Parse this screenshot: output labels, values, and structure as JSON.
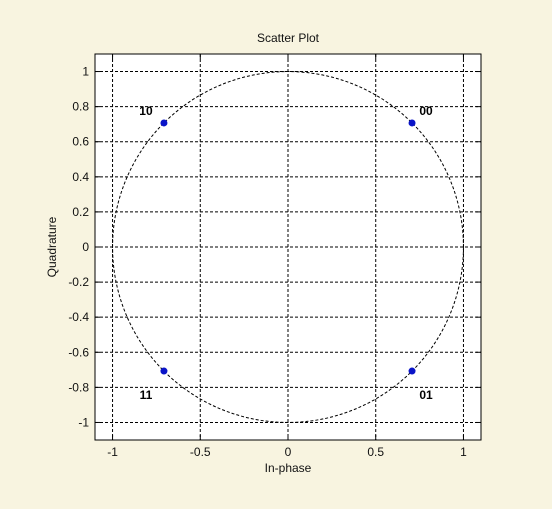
{
  "chart_data": {
    "type": "scatter",
    "title": "Scatter Plot",
    "xlabel": "In-phase",
    "ylabel": "Quadrature",
    "xlim": [
      -1.1,
      1.1
    ],
    "ylim": [
      -1.1,
      1.1
    ],
    "xticks": [
      -1,
      -0.5,
      0,
      0.5,
      1
    ],
    "xtick_labels": [
      "-1",
      "-0.5",
      "0",
      "0.5",
      "1"
    ],
    "yticks": [
      -1,
      -0.8,
      -0.6,
      -0.4,
      -0.2,
      0,
      0.2,
      0.4,
      0.6,
      0.8,
      1
    ],
    "ytick_labels": [
      "-1",
      "-0.8",
      "-0.6",
      "-0.4",
      "-0.2",
      "0",
      "0.2",
      "0.4",
      "0.6",
      "0.8",
      "1"
    ],
    "grid": true,
    "reference_circle_radius": 1,
    "points": [
      {
        "x": 0.707,
        "y": 0.707,
        "label": "00"
      },
      {
        "x": -0.707,
        "y": 0.707,
        "label": "10"
      },
      {
        "x": -0.707,
        "y": -0.707,
        "label": "11"
      },
      {
        "x": 0.707,
        "y": -0.707,
        "label": "01"
      }
    ],
    "colors": {
      "background": "#f8f4e0",
      "axes": "#ffffff",
      "point": "#0a14c8",
      "grid": "#000000"
    }
  }
}
